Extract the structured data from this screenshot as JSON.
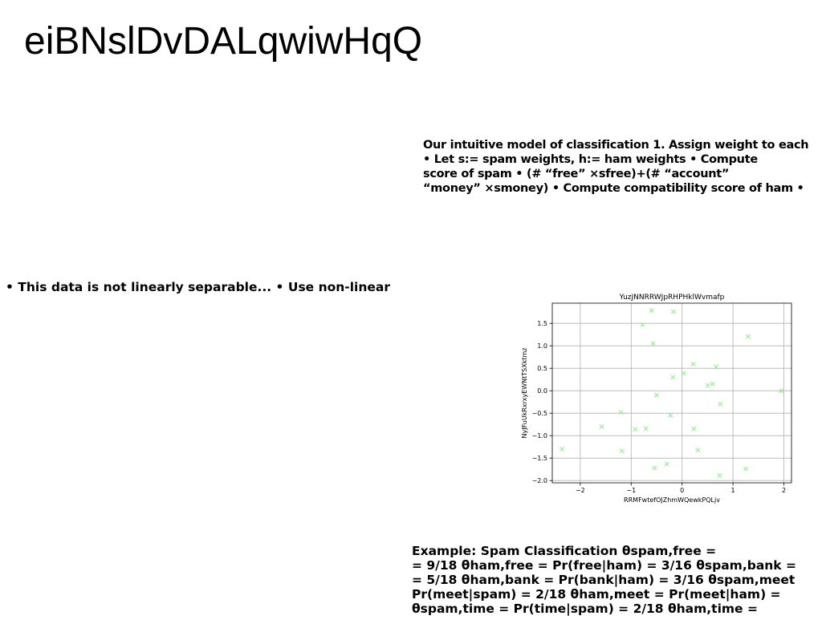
{
  "page": {
    "title": "eiBNslDvDALqwiwHqQ",
    "text_top": "Our intuitive model of classification 1. Assign weight to each\n• Let s:= spam weights, h:= ham weights • Compute\nscore of spam • (# “free” ×sfree)+(# “account”\n“money” ×smoney) • Compute compatibility score of ham •",
    "text_mid": "• This data is not linearly separable... • Use non-linear",
    "text_bottom": "Example: Spam Classification θspam,free =\n= 9/18 θham,free = Pr(free|ham) = 3/16 θspam,bank =\n= 5/18 θham,bank = Pr(bank|ham) = 3/16 θspam,meet\nPr(meet|spam) = 2/18 θham,meet = Pr(meet|ham) =\nθspam,time = Pr(time|spam) = 2/18 θham,time ="
  },
  "chart_data": {
    "type": "scatter",
    "title": "YuzJNNRRWJpRHPHklWvmafp",
    "xlabel": "RRMFwtefOJZhmWQewkPQLjv",
    "ylabel": "NyJFuUkRxrxyEWNtTSXktmz",
    "xlim": [
      -2.55,
      2.15
    ],
    "ylim": [
      -2.05,
      1.95
    ],
    "xticks": [
      -2,
      -1,
      0,
      1,
      2
    ],
    "xtick_labels": [
      "−2",
      "−1",
      "0",
      "1",
      "2"
    ],
    "yticks": [
      -2.0,
      -1.5,
      -1.0,
      -0.5,
      0.0,
      0.5,
      1.0,
      1.5
    ],
    "ytick_labels": [
      "−2.0",
      "−1.5",
      "−1.0",
      "−0.5",
      "0.0",
      "0.5",
      "1.0",
      "1.5"
    ],
    "grid": true,
    "marker": "x",
    "color": "#90ee90",
    "points": [
      {
        "x": -0.6,
        "y": 1.79
      },
      {
        "x": -0.17,
        "y": 1.76
      },
      {
        "x": -0.78,
        "y": 1.47
      },
      {
        "x": -0.57,
        "y": 1.05
      },
      {
        "x": 1.3,
        "y": 1.21
      },
      {
        "x": 0.22,
        "y": 0.59
      },
      {
        "x": 0.67,
        "y": 0.53
      },
      {
        "x": 0.03,
        "y": 0.39
      },
      {
        "x": -0.18,
        "y": 0.3
      },
      {
        "x": 0.6,
        "y": 0.15
      },
      {
        "x": 0.5,
        "y": 0.12
      },
      {
        "x": 1.95,
        "y": 0.0
      },
      {
        "x": -0.5,
        "y": -0.1
      },
      {
        "x": 0.75,
        "y": -0.3
      },
      {
        "x": -1.2,
        "y": -0.48
      },
      {
        "x": -0.23,
        "y": -0.55
      },
      {
        "x": -1.58,
        "y": -0.8
      },
      {
        "x": -0.92,
        "y": -0.86
      },
      {
        "x": -0.71,
        "y": -0.84
      },
      {
        "x": 0.23,
        "y": -0.85
      },
      {
        "x": -2.36,
        "y": -1.3
      },
      {
        "x": -1.18,
        "y": -1.34
      },
      {
        "x": 0.31,
        "y": -1.32
      },
      {
        "x": -0.3,
        "y": -1.63
      },
      {
        "x": -0.54,
        "y": -1.72
      },
      {
        "x": 1.25,
        "y": -1.74
      },
      {
        "x": 0.74,
        "y": -1.89
      }
    ]
  }
}
